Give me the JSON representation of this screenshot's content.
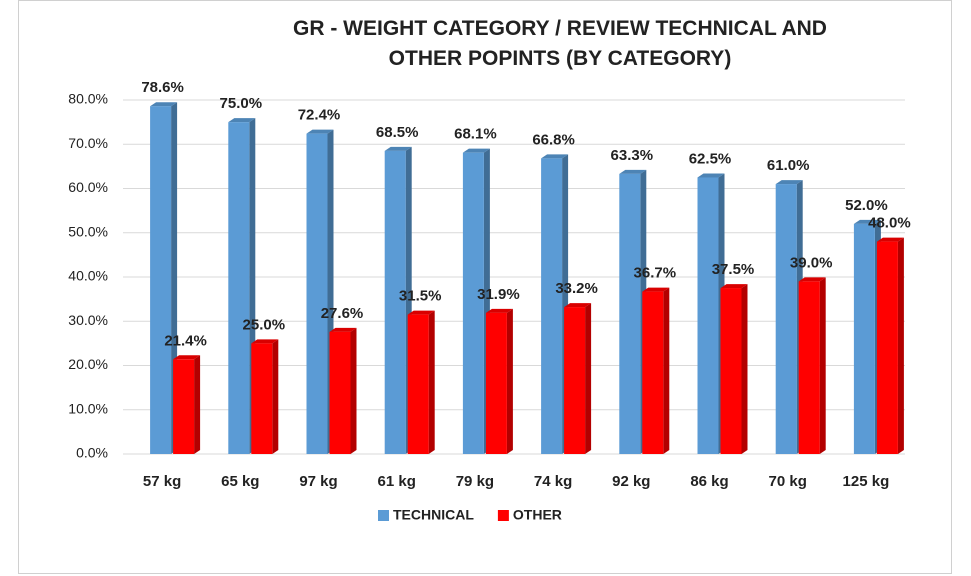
{
  "chart_data": {
    "type": "bar3d",
    "title": "GR - WEIGHT CATEGORY / REVIEW TECHNICAL AND OTHER POPINTS (BY CATEGORY)",
    "categories": [
      "57 kg",
      "65 kg",
      "97 kg",
      "61 kg",
      "79 kg",
      "74 kg",
      "92 kg",
      "86 kg",
      "70 kg",
      "125 kg"
    ],
    "series": [
      {
        "name": "TECHNICAL",
        "color": "#5b9bd5",
        "values": [
          78.6,
          75.0,
          72.4,
          68.5,
          68.1,
          66.8,
          63.3,
          62.5,
          61.0,
          52.0
        ],
        "value_labels": [
          "78.6%",
          "75.0%",
          "72.4%",
          "68.5%",
          "68.1%",
          "66.8%",
          "63.3%",
          "62.5%",
          "61.0%",
          "52.0%"
        ]
      },
      {
        "name": "OTHER",
        "color": "#ff0000",
        "values": [
          21.4,
          25.0,
          27.6,
          31.5,
          31.9,
          33.2,
          36.7,
          37.5,
          39.0,
          48.0
        ],
        "value_labels": [
          "21.4%",
          "25.0%",
          "27.6%",
          "31.5%",
          "31.9%",
          "33.2%",
          "36.7%",
          "37.5%",
          "39.0%",
          "48.0%"
        ]
      }
    ],
    "ylim": [
      0,
      80
    ],
    "yticks": [
      {
        "value": 0,
        "label": "0.0%"
      },
      {
        "value": 10,
        "label": "10.0%"
      },
      {
        "value": 20,
        "label": "20.0%"
      },
      {
        "value": 30,
        "label": "30.0%"
      },
      {
        "value": 40,
        "label": "40.0%"
      },
      {
        "value": 50,
        "label": "50.0%"
      },
      {
        "value": 60,
        "label": "60.0%"
      },
      {
        "value": 70,
        "label": "70.0%"
      },
      {
        "value": 80,
        "label": "80.0%"
      }
    ],
    "grid": true,
    "legend": "bottom"
  }
}
